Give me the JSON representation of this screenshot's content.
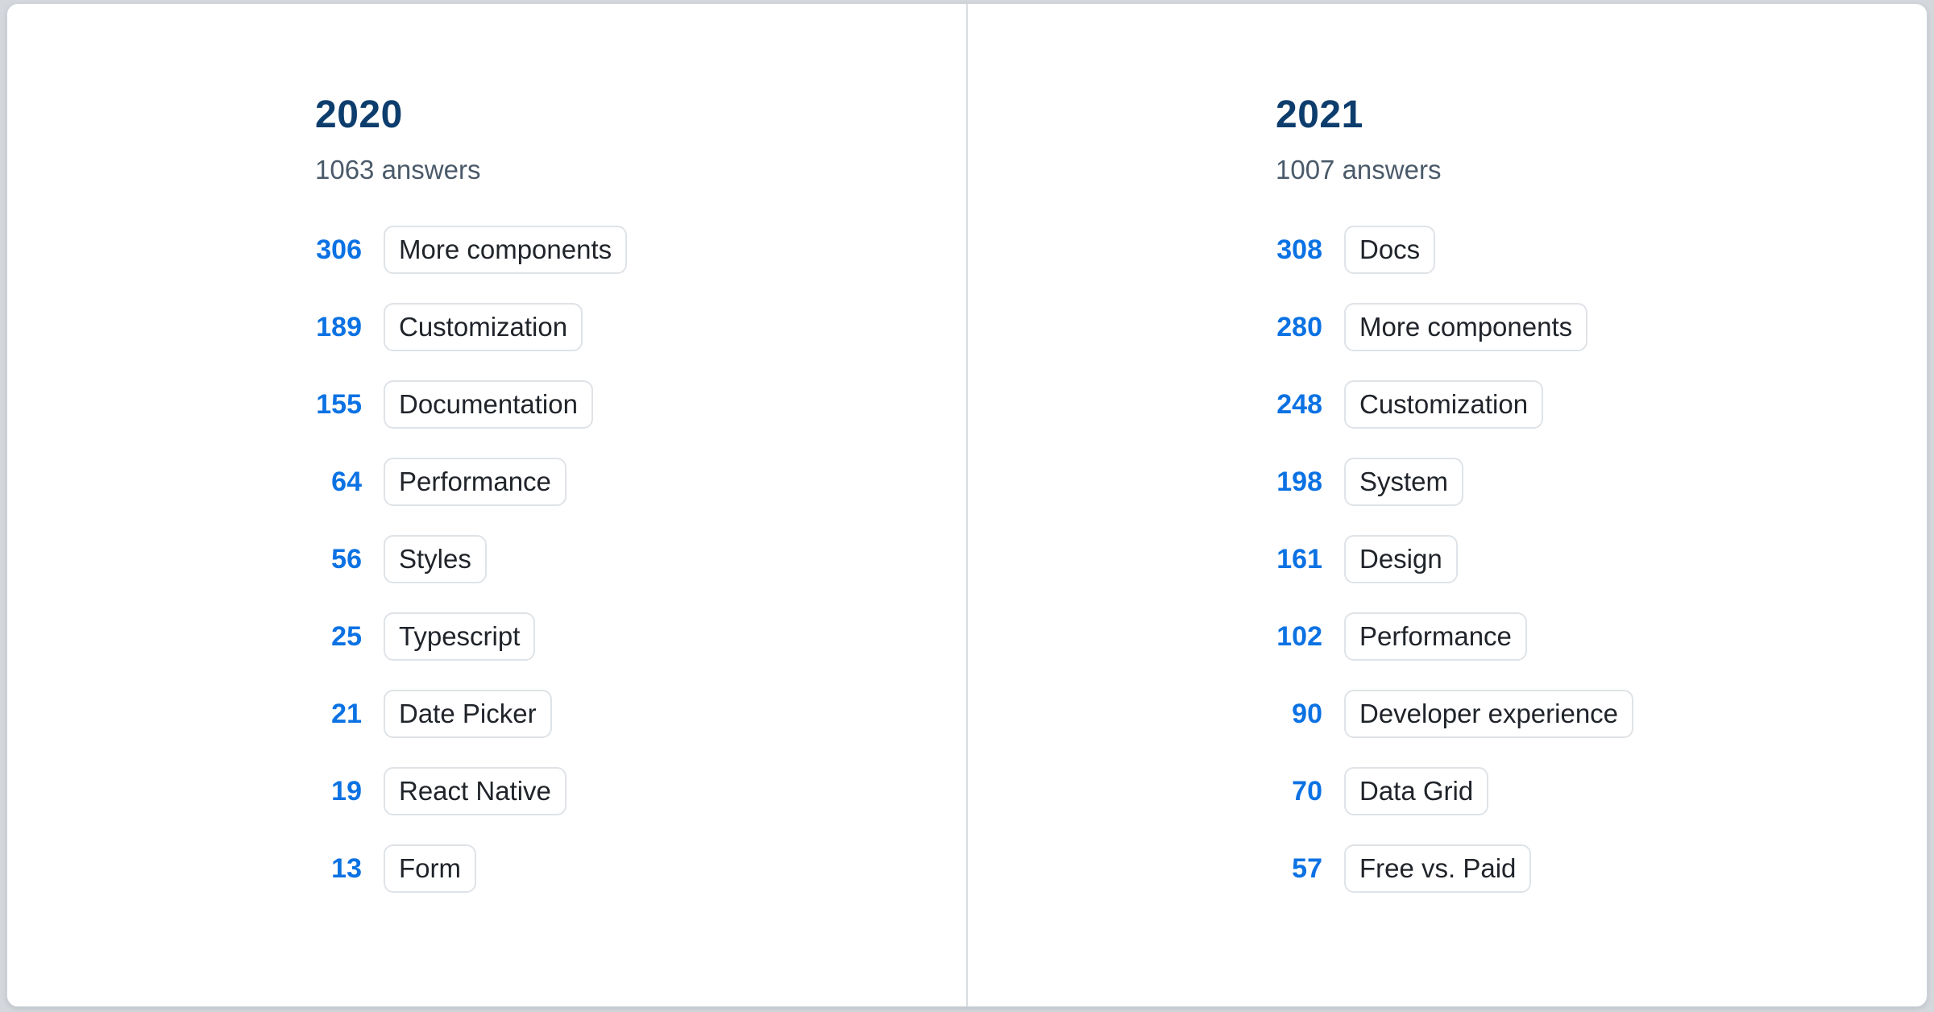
{
  "colors": {
    "bg": "#d4d8dd",
    "card-bg": "#ffffff",
    "card-border": "#cfd4d9",
    "divider": "#d9dde1",
    "year": "#0d3d6d",
    "subtitle": "#4a5a6a",
    "count": "#0c72e3",
    "chip-border": "#dfe3e7",
    "chip-text": "#20242a"
  },
  "columns": [
    {
      "year": "2020",
      "answers": "1063 answers",
      "items": [
        {
          "count": "306",
          "label": "More components"
        },
        {
          "count": "189",
          "label": "Customization"
        },
        {
          "count": "155",
          "label": "Documentation"
        },
        {
          "count": "64",
          "label": "Performance"
        },
        {
          "count": "56",
          "label": "Styles"
        },
        {
          "count": "25",
          "label": "Typescript"
        },
        {
          "count": "21",
          "label": "Date Picker"
        },
        {
          "count": "19",
          "label": "React Native"
        },
        {
          "count": "13",
          "label": "Form"
        }
      ]
    },
    {
      "year": "2021",
      "answers": "1007 answers",
      "items": [
        {
          "count": "308",
          "label": "Docs"
        },
        {
          "count": "280",
          "label": "More components"
        },
        {
          "count": "248",
          "label": "Customization"
        },
        {
          "count": "198",
          "label": "System"
        },
        {
          "count": "161",
          "label": "Design"
        },
        {
          "count": "102",
          "label": "Performance"
        },
        {
          "count": "90",
          "label": "Developer experience"
        },
        {
          "count": "70",
          "label": "Data Grid"
        },
        {
          "count": "57",
          "label": "Free vs. Paid"
        }
      ]
    }
  ],
  "chart_data": [
    {
      "type": "bar",
      "title": "2020",
      "subtitle": "1063 answers",
      "categories": [
        "More components",
        "Customization",
        "Documentation",
        "Performance",
        "Styles",
        "Typescript",
        "Date Picker",
        "React Native",
        "Form"
      ],
      "values": [
        306,
        189,
        155,
        64,
        56,
        25,
        21,
        19,
        13
      ],
      "xlabel": "",
      "ylabel": "answers"
    },
    {
      "type": "bar",
      "title": "2021",
      "subtitle": "1007 answers",
      "categories": [
        "Docs",
        "More components",
        "Customization",
        "System",
        "Design",
        "Performance",
        "Developer experience",
        "Data Grid",
        "Free vs. Paid"
      ],
      "values": [
        308,
        280,
        248,
        198,
        161,
        102,
        90,
        70,
        57
      ],
      "xlabel": "",
      "ylabel": "answers"
    }
  ]
}
